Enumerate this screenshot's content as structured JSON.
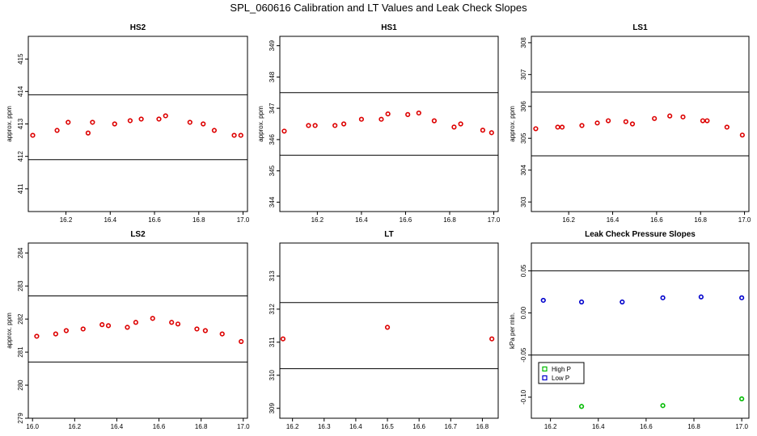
{
  "title": "SPL_060616  Calibration and LT Values and Leak Check Slopes",
  "chart_data": [
    {
      "type": "scatter",
      "title": "HS2",
      "ylabel": "approx. ppm",
      "xlim": [
        16.03,
        17.02
      ],
      "ylim": [
        410.3,
        415.7
      ],
      "xticks": [
        "16.2",
        "16.4",
        "16.6",
        "16.8",
        "17.0"
      ],
      "yticks": [
        "411",
        "412",
        "413",
        "414",
        "415"
      ],
      "hlines": [
        413.9,
        411.9
      ],
      "series": [
        {
          "color": "#dd0000",
          "x": [
            16.05,
            16.16,
            16.21,
            16.3,
            16.32,
            16.42,
            16.49,
            16.54,
            16.62,
            16.65,
            16.76,
            16.82,
            16.87,
            16.96,
            16.99
          ],
          "y": [
            412.65,
            412.8,
            413.05,
            412.72,
            413.05,
            413.0,
            413.1,
            413.15,
            413.15,
            413.25,
            413.05,
            413.0,
            412.8,
            412.65,
            412.65
          ]
        }
      ]
    },
    {
      "type": "scatter",
      "title": "HS1",
      "ylabel": "approx. ppm",
      "xlim": [
        16.03,
        17.02
      ],
      "ylim": [
        343.7,
        349.3
      ],
      "xticks": [
        "16.2",
        "16.4",
        "16.6",
        "16.8",
        "17.0"
      ],
      "yticks": [
        "344",
        "345",
        "346",
        "347",
        "348",
        "349"
      ],
      "hlines": [
        347.5,
        345.5
      ],
      "series": [
        {
          "color": "#dd0000",
          "x": [
            16.05,
            16.16,
            16.19,
            16.28,
            16.32,
            16.4,
            16.49,
            16.52,
            16.61,
            16.66,
            16.73,
            16.82,
            16.85,
            16.95,
            16.99
          ],
          "y": [
            346.27,
            346.45,
            346.45,
            346.45,
            346.5,
            346.65,
            346.65,
            346.82,
            346.8,
            346.85,
            346.6,
            346.4,
            346.5,
            346.3,
            346.22
          ]
        }
      ]
    },
    {
      "type": "scatter",
      "title": "LS1",
      "ylabel": "approx. ppm",
      "xlim": [
        16.03,
        17.02
      ],
      "ylim": [
        302.7,
        308.2
      ],
      "xticks": [
        "16.2",
        "16.4",
        "16.6",
        "16.8",
        "17.0"
      ],
      "yticks": [
        "303",
        "304",
        "305",
        "306",
        "307",
        "308"
      ],
      "hlines": [
        306.45,
        304.45
      ],
      "series": [
        {
          "color": "#dd0000",
          "x": [
            16.05,
            16.15,
            16.17,
            16.26,
            16.33,
            16.38,
            16.46,
            16.49,
            16.59,
            16.66,
            16.72,
            16.81,
            16.83,
            16.92,
            16.99
          ],
          "y": [
            305.3,
            305.35,
            305.35,
            305.4,
            305.48,
            305.55,
            305.52,
            305.45,
            305.62,
            305.7,
            305.67,
            305.55,
            305.55,
            305.35,
            305.1
          ]
        }
      ]
    },
    {
      "type": "scatter",
      "title": "LS2",
      "ylabel": "approx. ppm",
      "xlim": [
        15.98,
        17.02
      ],
      "ylim": [
        279,
        284.3
      ],
      "xticks": [
        "16.0",
        "16.2",
        "16.4",
        "16.6",
        "16.8",
        "17.0"
      ],
      "yticks": [
        "279",
        "280",
        "281",
        "282",
        "283",
        "284"
      ],
      "hlines": [
        282.7,
        280.7
      ],
      "series": [
        {
          "color": "#dd0000",
          "x": [
            16.02,
            16.11,
            16.16,
            16.24,
            16.33,
            16.36,
            16.45,
            16.49,
            16.57,
            16.66,
            16.69,
            16.78,
            16.82,
            16.9,
            16.99
          ],
          "y": [
            281.48,
            281.55,
            281.65,
            281.7,
            281.83,
            281.8,
            281.75,
            281.9,
            282.02,
            281.9,
            281.85,
            281.7,
            281.65,
            281.55,
            281.32
          ]
        }
      ]
    },
    {
      "type": "scatter",
      "title": "LT",
      "xlim": [
        16.16,
        16.85
      ],
      "ylim": [
        308.7,
        314
      ],
      "xticks": [
        "16.2",
        "16.3",
        "16.4",
        "16.5",
        "16.6",
        "16.7",
        "16.8"
      ],
      "yticks": [
        "309",
        "310",
        "311",
        "312",
        "313"
      ],
      "hlines": [
        312.2,
        310.2
      ],
      "series": [
        {
          "color": "#dd0000",
          "x": [
            16.17,
            16.5,
            16.83
          ],
          "y": [
            311.1,
            311.45,
            311.1
          ]
        }
      ]
    },
    {
      "type": "scatter",
      "title": "Leak Check Pressure Slopes",
      "ylabel": "kPa per min.",
      "xlim": [
        16.12,
        17.03
      ],
      "ylim": [
        -0.125,
        0.083
      ],
      "xticks": [
        "16.2",
        "16.4",
        "16.6",
        "16.8",
        "17.0"
      ],
      "yticks": [
        "-0.10",
        "-0.05",
        "0.00",
        "0.05"
      ],
      "hlines": [
        0.05,
        -0.05
      ],
      "legend": {
        "placement": "lower-left",
        "items": [
          {
            "label": "High P",
            "color": "#00bb00"
          },
          {
            "label": "Low P",
            "color": "#0000cc"
          }
        ]
      },
      "series": [
        {
          "name": "High P",
          "color": "#00bb00",
          "x": [
            16.33,
            16.67,
            17.0
          ],
          "y": [
            -0.111,
            -0.11,
            -0.102
          ]
        },
        {
          "name": "Low P",
          "color": "#0000cc",
          "x": [
            16.17,
            16.33,
            16.5,
            16.67,
            16.83,
            17.0
          ],
          "y": [
            0.015,
            0.013,
            0.013,
            0.018,
            0.019,
            0.018
          ]
        }
      ]
    }
  ]
}
